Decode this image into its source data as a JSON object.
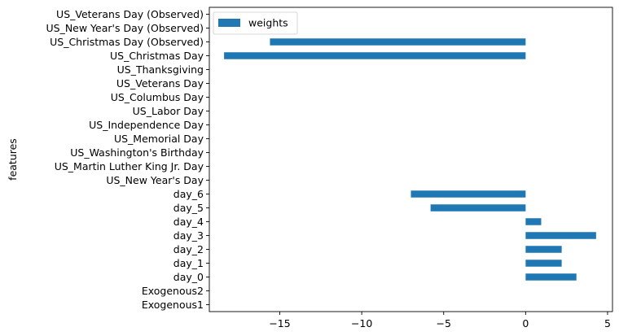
{
  "chart_data": {
    "type": "bar",
    "orientation": "horizontal",
    "ylabel": "features",
    "xlabel": "",
    "xlim": [
      -19.3,
      5.3
    ],
    "xticks": [
      -15,
      -10,
      -5,
      0,
      5
    ],
    "categories": [
      "Exogenous1",
      "Exogenous2",
      "day_0",
      "day_1",
      "day_2",
      "day_3",
      "day_4",
      "day_5",
      "day_6",
      "US_New Year's Day",
      "US_Martin Luther King Jr. Day",
      "US_Washington's Birthday",
      "US_Memorial Day",
      "US_Independence Day",
      "US_Labor Day",
      "US_Columbus Day",
      "US_Veterans Day",
      "US_Thanksgiving",
      "US_Christmas Day",
      "US_Christmas Day (Observed)",
      "US_New Year's Day (Observed)",
      "US_Veterans Day (Observed)"
    ],
    "series": [
      {
        "name": "weights",
        "color": "#1f77b4",
        "values": [
          0,
          0,
          3.1,
          2.2,
          2.2,
          4.3,
          0.95,
          -5.8,
          -7.0,
          0,
          0,
          0,
          0,
          0,
          0,
          0,
          0,
          0,
          -18.4,
          -15.6,
          0,
          0
        ]
      }
    ],
    "legend": "top-left",
    "grid": false
  }
}
